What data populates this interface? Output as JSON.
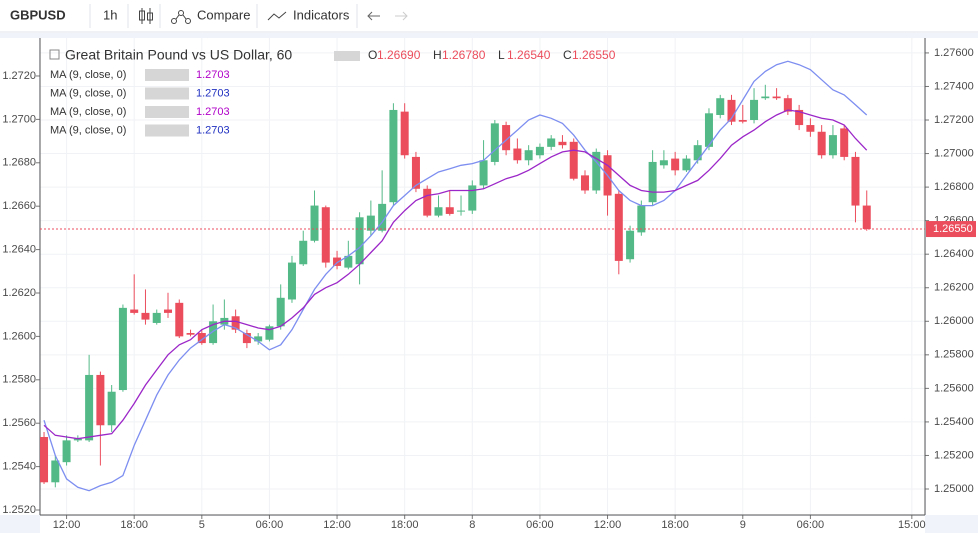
{
  "toolbar": {
    "symbol": "GBPUSD",
    "interval": "1h",
    "compare": "Compare",
    "indicators": "Indicators"
  },
  "chart_data": {
    "type": "candlestick",
    "title": "Great Britain Pound vs US Dollar, 60",
    "ohlc_header": [
      {
        "label": "O",
        "value": "1.26690"
      },
      {
        "label": "H",
        "value": "1.26780"
      },
      {
        "label": "L",
        "value": "1.26540"
      },
      {
        "label": "C",
        "value": "1.26550"
      }
    ],
    "studies": [
      {
        "name": "MA (9, close, 0)",
        "value_label": "1.2703",
        "color": "#b000c8"
      },
      {
        "name": "MA (9, close, 0)",
        "value_label": "1.2703",
        "color": "#2030c0"
      },
      {
        "name": "MA (9, close, 0)",
        "value_label": "1.2703",
        "color": "#b000c8"
      },
      {
        "name": "MA (9, close, 0)",
        "value_label": "1.2703",
        "color": "#2030c0"
      }
    ],
    "categories": [
      null,
      null,
      "12:00",
      null,
      null,
      null,
      null,
      null,
      "18:00",
      null,
      null,
      null,
      null,
      null,
      "5",
      null,
      null,
      null,
      null,
      null,
      "06:00",
      null,
      null,
      null,
      null,
      null,
      "12:00",
      null,
      null,
      null,
      null,
      null,
      "18:00",
      null,
      null,
      null,
      null,
      null,
      "8",
      null,
      null,
      null,
      null,
      null,
      "06:00",
      null,
      null,
      null,
      null,
      null,
      "12:00",
      null,
      null,
      null,
      null,
      null,
      "18:00",
      null,
      null,
      null,
      null,
      null,
      "9",
      null,
      null,
      null,
      null,
      null,
      "06:00",
      null,
      null,
      null,
      null,
      null,
      null,
      null,
      null,
      "15:00"
    ],
    "open": [
      1.2531,
      1.2504,
      1.2516,
      1.2529,
      1.2529,
      1.2568,
      1.2538,
      1.2559,
      1.2607,
      1.2605,
      1.2599,
      1.2607,
      1.2611,
      1.2593,
      1.2593,
      1.2587,
      1.2598,
      1.2603,
      1.2593,
      1.2588,
      1.2589,
      1.2597,
      1.2613,
      1.2634,
      1.2648,
      1.2668,
      1.2638,
      1.2632,
      1.2634,
      1.2654,
      1.2654,
      1.2671,
      1.2725,
      1.2698,
      1.2679,
      1.2663,
      1.2668,
      1.2666,
      1.2666,
      1.2681,
      1.2695,
      1.2717,
      1.2703,
      1.2696,
      1.2699,
      1.2704,
      1.2707,
      1.2707,
      1.2687,
      1.2678,
      1.2699,
      1.2676,
      1.2637,
      1.2653,
      1.2671,
      1.2693,
      1.2697,
      1.269,
      1.2696,
      1.2704,
      1.2723,
      1.2732,
      1.272,
      1.272,
      1.2733,
      1.2734,
      1.2733,
      1.2726,
      1.2717,
      1.2713,
      1.2699,
      1.2715,
      1.2698,
      1.2669,
      null,
      null,
      null,
      null
    ],
    "high": [
      1.2534,
      1.252,
      1.2532,
      1.2532,
      1.258,
      1.257,
      1.2562,
      1.261,
      1.2628,
      1.2619,
      1.2607,
      1.2617,
      1.2613,
      1.2595,
      1.2595,
      1.261,
      1.2613,
      1.2607,
      1.2595,
      1.2593,
      1.2598,
      1.2622,
      1.2639,
      1.2654,
      1.2678,
      1.2669,
      1.2642,
      1.2648,
      1.2665,
      1.2672,
      1.269,
      1.273,
      1.273,
      1.2701,
      1.2681,
      1.2675,
      1.2678,
      1.2675,
      1.2684,
      1.2708,
      1.272,
      1.2719,
      1.2709,
      1.2705,
      1.2706,
      1.2711,
      1.2711,
      1.2709,
      1.269,
      1.2703,
      1.2702,
      1.2678,
      1.2657,
      1.2672,
      1.2702,
      1.2702,
      1.2701,
      1.2699,
      1.2708,
      1.2727,
      1.2735,
      1.2735,
      1.2729,
      1.2739,
      1.2741,
      1.2739,
      1.2735,
      1.2729,
      1.2721,
      1.2717,
      1.2717,
      1.2717,
      1.2701,
      1.2678,
      null,
      null,
      null,
      null
    ],
    "low": [
      1.2503,
      1.2501,
      1.2514,
      1.2528,
      1.2528,
      1.2514,
      1.2534,
      1.2558,
      1.2604,
      1.2598,
      1.2598,
      1.2602,
      1.259,
      1.2591,
      1.2586,
      1.2586,
      1.2595,
      1.2593,
      1.2584,
      1.2586,
      1.2588,
      1.2595,
      1.2611,
      1.2633,
      1.2647,
      1.2632,
      1.2631,
      1.2631,
      1.2622,
      1.2651,
      1.2653,
      1.2669,
      1.2697,
      1.2677,
      1.2662,
      1.2662,
      1.2663,
      1.2663,
      1.2664,
      1.2679,
      1.2693,
      1.2699,
      1.2694,
      1.2693,
      1.2697,
      1.2702,
      1.2703,
      1.2684,
      1.2676,
      1.2676,
      1.2663,
      1.2628,
      1.2635,
      1.2651,
      1.2669,
      1.2691,
      1.2687,
      1.2689,
      1.2694,
      1.2702,
      1.2721,
      1.2717,
      1.2718,
      1.2718,
      1.2732,
      1.2732,
      1.2723,
      1.2714,
      1.271,
      1.2697,
      1.2697,
      1.2696,
      1.2659,
      1.2654,
      null,
      null,
      null,
      null
    ],
    "close": [
      1.2504,
      1.2517,
      1.2529,
      1.253,
      1.2568,
      1.2538,
      1.2558,
      1.2608,
      1.2605,
      1.2601,
      1.2605,
      1.2605,
      1.2591,
      1.2592,
      1.2587,
      1.26,
      1.2602,
      1.2595,
      1.2587,
      1.2591,
      1.2597,
      1.2614,
      1.2635,
      1.2648,
      1.2669,
      1.2635,
      1.2633,
      1.2639,
      1.2662,
      1.2663,
      1.267,
      1.2726,
      1.2699,
      1.2679,
      1.2663,
      1.2668,
      1.2664,
      1.2666,
      1.2681,
      1.2696,
      1.2718,
      1.2702,
      1.2696,
      1.2702,
      1.2704,
      1.2709,
      1.2705,
      1.2685,
      1.2678,
      1.2701,
      1.2675,
      1.2636,
      1.2654,
      1.2669,
      1.2695,
      1.2696,
      1.269,
      1.2697,
      1.2705,
      1.2724,
      1.2733,
      1.2719,
      1.2719,
      1.2732,
      1.2734,
      1.2733,
      1.2725,
      1.2717,
      1.2713,
      1.2699,
      1.2711,
      1.2698,
      1.2669,
      1.2655,
      null,
      null,
      null,
      null
    ],
    "up_color": "#53b987",
    "down_color": "#eb4d5c",
    "lines": [
      {
        "color": "#7d8ef0",
        "values": [
          1.2541,
          1.252,
          1.2506,
          1.2501,
          1.2499,
          1.2502,
          1.2504,
          1.2508,
          1.2526,
          1.2541,
          1.2556,
          1.2568,
          1.2577,
          1.2584,
          1.2589,
          1.2594,
          1.2598,
          1.2596,
          1.2592,
          1.2588,
          1.2583,
          1.2586,
          1.2595,
          1.2607,
          1.2619,
          1.2628,
          1.2635,
          1.2639,
          1.2644,
          1.2651,
          1.2659,
          1.2669,
          1.2675,
          1.2681,
          1.2685,
          1.2689,
          1.2691,
          1.2693,
          1.2694,
          1.2696,
          1.2702,
          1.2708,
          1.2714,
          1.272,
          1.2723,
          1.2721,
          1.2718,
          1.2711,
          1.2702,
          1.2695,
          1.2687,
          1.2678,
          1.2672,
          1.2669,
          1.2669,
          1.2672,
          1.2678,
          1.2687,
          1.2696,
          1.2705,
          1.2714,
          1.2721,
          1.2732,
          1.2743,
          1.2749,
          1.2753,
          1.2755,
          1.2753,
          1.275,
          1.2744,
          1.2738,
          1.2735,
          1.2729,
          1.2723,
          null,
          null,
          null,
          null
        ]
      },
      {
        "color": "#9c27c8",
        "values": [
          1.2538,
          1.2532,
          1.2531,
          1.253,
          1.2531,
          1.2532,
          1.2533,
          1.2541,
          1.2551,
          1.2562,
          1.2571,
          1.258,
          1.2586,
          1.2589,
          1.2595,
          1.2598,
          1.26,
          1.26,
          1.2598,
          1.2596,
          1.2595,
          1.2597,
          1.2602,
          1.2608,
          1.2616,
          1.262,
          1.2623,
          1.2628,
          1.2634,
          1.2641,
          1.2648,
          1.2659,
          1.2666,
          1.2672,
          1.2675,
          1.2676,
          1.2678,
          1.2678,
          1.2678,
          1.2679,
          1.2682,
          1.2685,
          1.2687,
          1.269,
          1.2694,
          1.2698,
          1.2701,
          1.2702,
          1.2701,
          1.2697,
          1.2693,
          1.2687,
          1.2681,
          1.2678,
          1.2677,
          1.2677,
          1.2678,
          1.2681,
          1.2684,
          1.269,
          1.2697,
          1.2705,
          1.271,
          1.2714,
          1.2719,
          1.2723,
          1.2726,
          1.2725,
          1.2723,
          1.2721,
          1.272,
          1.2717,
          1.2709,
          1.2702,
          null,
          null,
          null,
          null
        ]
      }
    ],
    "last_price": {
      "value": 1.2655,
      "label": "1.26550",
      "color": "#eb4d5c"
    },
    "ylim": [
      1.24845,
      1.27689
    ],
    "yticks": [
      {
        "value": 1.25,
        "label": "1.25000"
      },
      {
        "value": 1.252,
        "label": "1.25200"
      },
      {
        "value": 1.254,
        "label": "1.25400"
      },
      {
        "value": 1.256,
        "label": "1.25600"
      },
      {
        "value": 1.258,
        "label": "1.25800"
      },
      {
        "value": 1.26,
        "label": "1.26000"
      },
      {
        "value": 1.262,
        "label": "1.26200"
      },
      {
        "value": 1.264,
        "label": "1.26400"
      },
      {
        "value": 1.266,
        "label": "1.26600"
      },
      {
        "value": 1.268,
        "label": "1.26800"
      },
      {
        "value": 1.27,
        "label": "1.27000"
      },
      {
        "value": 1.272,
        "label": "1.27200"
      },
      {
        "value": 1.274,
        "label": "1.27400"
      },
      {
        "value": 1.276,
        "label": "1.27600"
      }
    ],
    "y2lim": [
      1.25177,
      1.27375
    ],
    "y2ticks": [
      {
        "value": 1.252,
        "label": "1.2520"
      },
      {
        "value": 1.254,
        "label": "1.2540"
      },
      {
        "value": 1.256,
        "label": "1.2560"
      },
      {
        "value": 1.258,
        "label": "1.2580"
      },
      {
        "value": 1.26,
        "label": "1.2600"
      },
      {
        "value": 1.262,
        "label": "1.2620"
      },
      {
        "value": 1.264,
        "label": "1.2640"
      },
      {
        "value": 1.266,
        "label": "1.2660"
      },
      {
        "value": 1.268,
        "label": "1.2680"
      },
      {
        "value": 1.27,
        "label": "1.2700"
      },
      {
        "value": 1.272,
        "label": "1.2720"
      }
    ],
    "grid": true
  }
}
